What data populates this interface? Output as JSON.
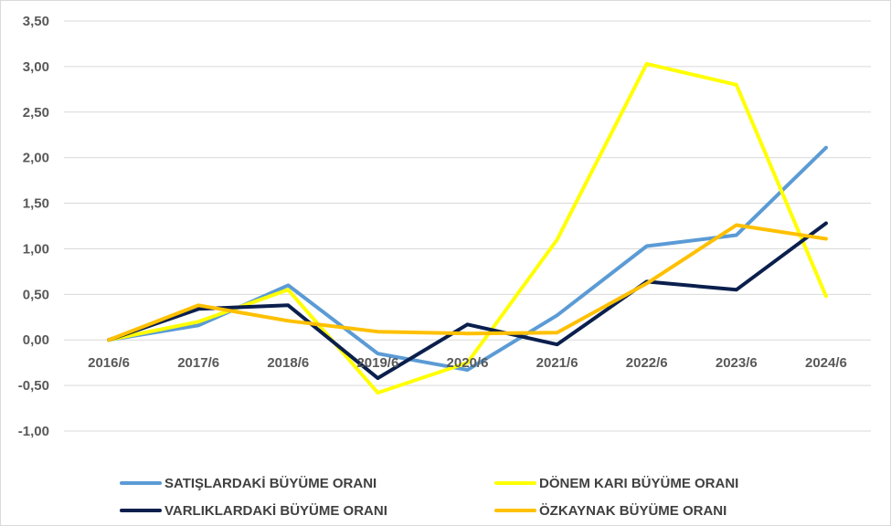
{
  "chart_data": {
    "type": "line",
    "title": "",
    "xlabel": "",
    "ylabel": "",
    "categories": [
      "2016/6",
      "2017/6",
      "2018/6",
      "2019/6",
      "2020/6",
      "2021/6",
      "2022/6",
      "2023/6",
      "2024/6"
    ],
    "ylim": [
      -1.0,
      3.5
    ],
    "yticks": [
      3.5,
      3.0,
      2.5,
      2.0,
      1.5,
      1.0,
      0.5,
      0.0,
      -0.5,
      -1.0
    ],
    "ytick_labels": [
      "3,50",
      "3,00",
      "2,50",
      "2,00",
      "1,50",
      "1,00",
      "0,50",
      "0,00",
      "-0,50",
      "-1,00"
    ],
    "grid": true,
    "legend_position": "bottom",
    "series": [
      {
        "name": "SATIŞLARDAKİ BÜYÜME ORANI",
        "color": "#5b9bd5",
        "values": [
          0.0,
          0.16,
          0.6,
          -0.15,
          -0.33,
          0.27,
          1.03,
          1.15,
          2.11
        ]
      },
      {
        "name": "DÖNEM KARI BÜYÜME ORANI",
        "color": "#ffff00",
        "values": [
          0.0,
          0.2,
          0.55,
          -0.58,
          -0.25,
          1.1,
          3.03,
          2.8,
          0.48
        ]
      },
      {
        "name": "VARLIKLARDAKİ BÜYÜME ORANI",
        "color": "#0b1f4d",
        "values": [
          0.0,
          0.34,
          0.38,
          -0.42,
          0.17,
          -0.05,
          0.64,
          0.55,
          1.28
        ]
      },
      {
        "name": "ÖZKAYNAK BÜYÜME ORANI",
        "color": "#ffc000",
        "values": [
          0.0,
          0.38,
          0.21,
          0.09,
          0.07,
          0.08,
          0.62,
          1.26,
          1.11
        ]
      }
    ]
  }
}
